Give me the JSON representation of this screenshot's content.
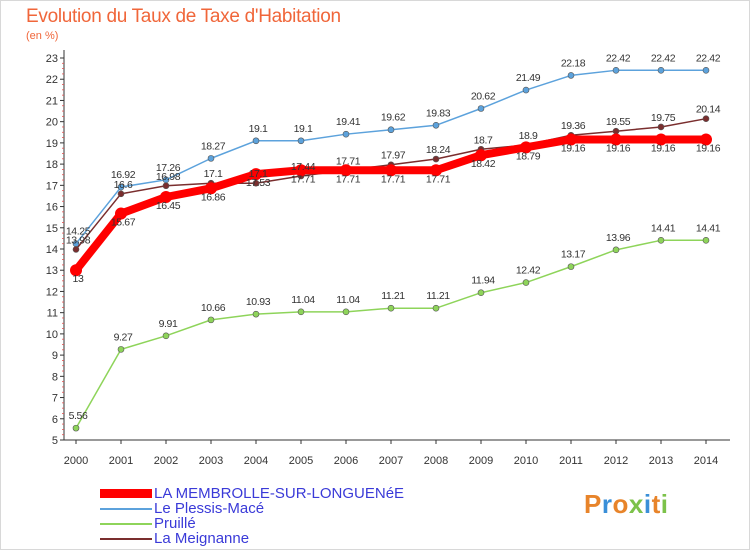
{
  "header": {
    "title": "Evolution du Taux de Taxe d'Habitation",
    "unit": "(en %)"
  },
  "logo": {
    "text": "Proxiti",
    "colors": [
      "#e8842a",
      "#3a8fd8",
      "#e8842a",
      "#7cc24a",
      "#3a8fd8",
      "#e8842a",
      "#7cc24a"
    ]
  },
  "chart_data": {
    "type": "line",
    "x": [
      2000,
      2001,
      2002,
      2003,
      2004,
      2005,
      2006,
      2007,
      2008,
      2009,
      2010,
      2011,
      2012,
      2013,
      2014
    ],
    "ylim": [
      5,
      23
    ],
    "yticks": [
      5,
      6,
      7,
      8,
      9,
      10,
      11,
      12,
      13,
      14,
      15,
      16,
      17,
      18,
      19,
      20,
      21,
      22,
      23
    ],
    "grid": false,
    "legend_position": "bottom-left",
    "series": [
      {
        "name": "LA MEMBROLLE-SUR-LONGUENéE",
        "color": "#ff0000",
        "values": [
          13.0,
          15.67,
          16.45,
          16.86,
          17.53,
          17.71,
          17.71,
          17.71,
          17.71,
          18.42,
          18.79,
          19.16,
          19.16,
          19.16,
          19.16
        ],
        "labels": [
          "13",
          "15.67",
          "16.45",
          "16.86",
          "17.53",
          "17.71",
          "17.71",
          "17.71",
          "17.71",
          "18.42",
          "18.79",
          "19.16",
          "19.16",
          "19.16",
          "19.16"
        ]
      },
      {
        "name": "Le Plessis-Macé",
        "color": "#5ca2dc",
        "values": [
          14.25,
          16.92,
          17.26,
          18.27,
          19.1,
          19.1,
          19.41,
          19.62,
          19.83,
          20.62,
          21.49,
          22.18,
          22.42,
          22.42,
          22.42
        ],
        "labels": [
          "14.25",
          "16.92",
          "17.26",
          "18.27",
          "19.1",
          "19.1",
          "19.41",
          "19.62",
          "19.83",
          "20.62",
          "21.49",
          "22.18",
          "22.42",
          "22.42",
          "22.42"
        ]
      },
      {
        "name": "Pruillé",
        "color": "#8ed45a",
        "values": [
          5.56,
          9.27,
          9.91,
          10.66,
          10.93,
          11.04,
          11.04,
          11.21,
          11.21,
          11.94,
          12.42,
          13.17,
          13.96,
          14.41,
          14.41
        ],
        "labels": [
          "5.56",
          "9.27",
          "9.91",
          "10.66",
          "10.93",
          "11.04",
          "11.04",
          "11.21",
          "11.21",
          "11.94",
          "12.42",
          "13.17",
          "13.96",
          "14.41",
          "14.41"
        ]
      },
      {
        "name": "La Meignanne",
        "color": "#7a2e2e",
        "values": [
          13.98,
          16.6,
          16.98,
          17.1,
          17.1,
          17.44,
          17.71,
          17.97,
          18.24,
          18.7,
          18.9,
          19.36,
          19.55,
          19.75,
          20.14
        ],
        "labels": [
          "13.98",
          "16.6",
          "16.98",
          "17.1",
          "17.1",
          "17.44",
          "17.71",
          "17.97",
          "18.24",
          "18.7",
          "18.9",
          "19.36",
          "19.55",
          "19.75",
          "20.14"
        ]
      }
    ]
  }
}
